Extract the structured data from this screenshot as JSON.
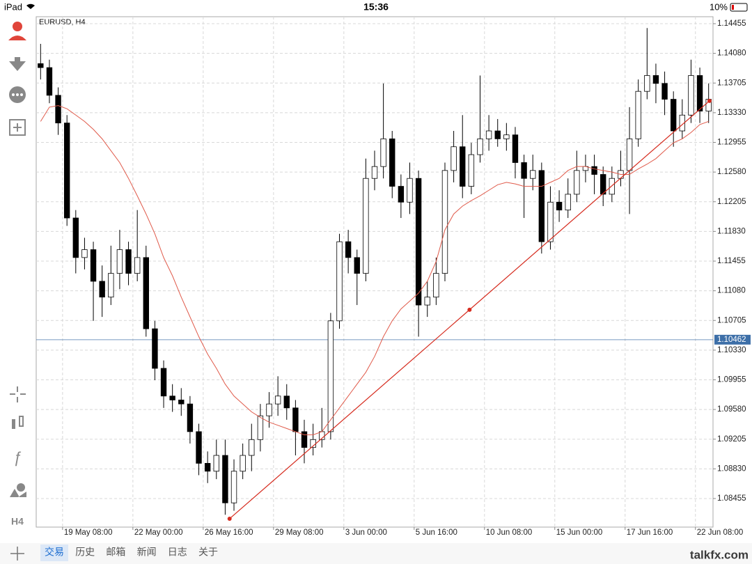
{
  "status_bar": {
    "device": "iPad",
    "time": "15:36",
    "battery": "10%"
  },
  "sidebar": {
    "timeframe": "H4"
  },
  "chart_data": {
    "type": "candlestick",
    "title": "EURUSD, H4",
    "open": [
      1.1395,
      1.139,
      1.1355,
      1.132,
      1.12,
      1.115,
      1.116,
      1.112,
      1.11,
      1.113,
      1.116,
      1.113,
      1.115,
      1.106,
      1.101,
      1.0975,
      1.097,
      1.0965,
      1.093,
      1.089,
      1.088,
      1.09,
      1.084,
      1.088,
      1.09,
      1.092,
      1.095,
      1.0965,
      1.0975,
      1.096,
      1.093,
      1.091,
      1.092,
      1.093,
      1.107,
      1.117,
      1.115,
      1.113,
      1.125,
      1.1265,
      1.13,
      1.124,
      1.122,
      1.125,
      1.109,
      1.11,
      1.113,
      1.126,
      1.129,
      1.124,
      1.128,
      1.13,
      1.131,
      1.13,
      1.1305,
      1.127,
      1.125,
      1.126,
      1.117,
      1.122,
      1.121,
      1.123,
      1.126,
      1.1265,
      1.1255,
      1.123,
      1.125,
      1.126,
      1.13,
      1.136,
      1.138,
      1.137,
      1.135,
      1.131,
      1.133,
      1.138,
      1.1335
    ],
    "high": [
      1.142,
      1.14,
      1.1365,
      1.133,
      1.121,
      1.1175,
      1.117,
      1.114,
      1.1165,
      1.1185,
      1.117,
      1.121,
      1.1165,
      1.107,
      1.102,
      1.099,
      1.0985,
      1.0975,
      1.094,
      1.0905,
      1.092,
      1.092,
      1.0895,
      1.0915,
      1.094,
      1.0965,
      1.098,
      1.1,
      1.099,
      1.097,
      1.0945,
      1.094,
      1.096,
      1.108,
      1.118,
      1.1185,
      1.116,
      1.1275,
      1.1285,
      1.137,
      1.131,
      1.1255,
      1.127,
      1.126,
      1.112,
      1.115,
      1.127,
      1.131,
      1.133,
      1.1295,
      1.138,
      1.133,
      1.1325,
      1.132,
      1.1315,
      1.128,
      1.128,
      1.127,
      1.124,
      1.1235,
      1.125,
      1.1285,
      1.128,
      1.128,
      1.1265,
      1.1265,
      1.1285,
      1.134,
      1.1375,
      1.144,
      1.1395,
      1.1385,
      1.136,
      1.135,
      1.14,
      1.139,
      1.137
    ],
    "low": [
      1.1375,
      1.1345,
      1.1305,
      1.119,
      1.113,
      1.1135,
      1.107,
      1.1075,
      1.109,
      1.111,
      1.1115,
      1.112,
      1.105,
      1.0995,
      1.096,
      1.0955,
      1.095,
      1.0915,
      1.0875,
      1.0865,
      1.087,
      1.0825,
      1.083,
      1.087,
      1.088,
      1.0905,
      1.0935,
      1.095,
      1.0945,
      1.09,
      1.089,
      1.09,
      1.091,
      1.092,
      1.106,
      1.113,
      1.109,
      1.112,
      1.1235,
      1.125,
      1.1225,
      1.12,
      1.1205,
      1.105,
      1.1075,
      1.109,
      1.112,
      1.1245,
      1.1225,
      1.123,
      1.127,
      1.1285,
      1.129,
      1.1285,
      1.125,
      1.12,
      1.1235,
      1.1155,
      1.116,
      1.1195,
      1.12,
      1.122,
      1.1245,
      1.123,
      1.1215,
      1.122,
      1.124,
      1.1205,
      1.129,
      1.135,
      1.1345,
      1.133,
      1.129,
      1.13,
      1.132,
      1.132,
      1.132
    ],
    "close": [
      1.139,
      1.1355,
      1.132,
      1.12,
      1.115,
      1.116,
      1.112,
      1.11,
      1.113,
      1.116,
      1.113,
      1.115,
      1.106,
      1.101,
      1.0975,
      1.097,
      1.0965,
      1.093,
      1.089,
      1.088,
      1.09,
      1.084,
      1.088,
      1.09,
      1.092,
      1.095,
      1.0965,
      1.0975,
      1.096,
      1.093,
      1.091,
      1.092,
      1.093,
      1.107,
      1.117,
      1.115,
      1.113,
      1.125,
      1.1265,
      1.13,
      1.124,
      1.122,
      1.125,
      1.109,
      1.11,
      1.113,
      1.126,
      1.129,
      1.124,
      1.128,
      1.13,
      1.131,
      1.13,
      1.1305,
      1.127,
      1.125,
      1.126,
      1.117,
      1.122,
      1.121,
      1.123,
      1.126,
      1.1265,
      1.1255,
      1.123,
      1.125,
      1.126,
      1.13,
      1.136,
      1.138,
      1.137,
      1.135,
      1.131,
      1.133,
      1.138,
      1.1335,
      1.135
    ],
    "up_color": "#ffffff",
    "down_color": "#000000",
    "ma": {
      "color": "#e05a4a",
      "values": [
        1.1322,
        1.134,
        1.1342,
        1.1338,
        1.133,
        1.1322,
        1.1312,
        1.13,
        1.1285,
        1.127,
        1.125,
        1.1228,
        1.1205,
        1.118,
        1.115,
        1.1127,
        1.11,
        1.1075,
        1.105,
        1.1028,
        1.101,
        1.099,
        1.0975,
        1.0965,
        1.0955,
        1.0948,
        1.0942,
        1.0938,
        1.0934,
        1.093,
        1.0926,
        1.0926,
        1.093,
        1.0945,
        1.096,
        1.0975,
        1.099,
        1.1005,
        1.1025,
        1.105,
        1.107,
        1.1085,
        1.1095,
        1.1105,
        1.112,
        1.1145,
        1.1185,
        1.1205,
        1.1215,
        1.1222,
        1.1228,
        1.1235,
        1.1242,
        1.1245,
        1.1243,
        1.124,
        1.124,
        1.124,
        1.1245,
        1.125,
        1.126,
        1.1265,
        1.1265,
        1.1262,
        1.126,
        1.1258,
        1.1255,
        1.1255,
        1.1262,
        1.1268,
        1.1275,
        1.1285,
        1.1295,
        1.13,
        1.1308,
        1.1318,
        1.1322
      ]
    },
    "trendline": {
      "color": "#d62b1e",
      "x": [
        21.5,
        48.8,
        76.1
      ],
      "y": [
        1.082,
        1.1084,
        1.1348
      ]
    },
    "current_price": 1.10462,
    "current_price_color": "#3d6fa8",
    "xlim": [
      -0.5,
      76.5
    ],
    "ylim": [
      1.08094,
      1.14543
    ],
    "xticks": [
      {
        "value": 2.5,
        "label": "19 May 08:00"
      },
      {
        "value": 10.5,
        "label": "22 May 00:00"
      },
      {
        "value": 18.5,
        "label": "26 May 16:00"
      },
      {
        "value": 26.5,
        "label": "29 May 08:00"
      },
      {
        "value": 34.5,
        "label": "3 Jun 00:00"
      },
      {
        "value": 42.5,
        "label": "5 Jun 16:00"
      },
      {
        "value": 50.5,
        "label": "10 Jun 08:00"
      },
      {
        "value": 58.5,
        "label": "15 Jun 00:00"
      },
      {
        "value": 66.5,
        "label": "17 Jun 16:00"
      },
      {
        "value": 74.5,
        "label": "22 Jun 08:00"
      }
    ],
    "yticks": [
      1.14455,
      {
        "value": 1.1408,
        "label": "1.14080"
      },
      1.13705,
      {
        "value": 1.1333,
        "label": "1.13330"
      },
      1.12955,
      {
        "value": 1.1258,
        "label": "1.12580"
      },
      1.12205,
      {
        "value": 1.1183,
        "label": "1.11830"
      },
      1.11455,
      {
        "value": 1.1108,
        "label": "1.11080"
      },
      1.10705,
      {
        "value": 1.1033,
        "label": "1.10330"
      },
      1.09955,
      {
        "value": 1.0958,
        "label": "1.09580"
      },
      1.09205,
      {
        "value": 1.0883,
        "label": "1.08830"
      },
      1.08455
    ],
    "grid": true
  },
  "tabs": [
    "交易",
    "历史",
    "邮箱",
    "新闻",
    "日志",
    "关于"
  ],
  "watermark": "talkfx.com"
}
